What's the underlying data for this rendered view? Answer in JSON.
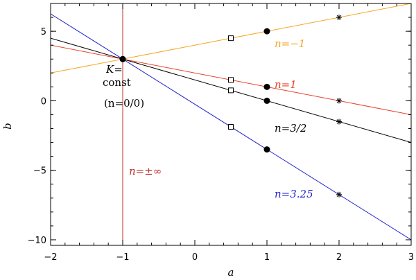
{
  "chart_data": {
    "type": "line",
    "xlabel": "a",
    "ylabel": "b",
    "xlim": [
      -2,
      3
    ],
    "ylim": [
      -10.4,
      7
    ],
    "xticks": [
      -2,
      -1,
      0,
      1,
      2,
      3
    ],
    "yticks": [
      -10,
      -5,
      0,
      5
    ],
    "grid": false,
    "series": [
      {
        "name": "n=−1",
        "color": "#f5a623",
        "slope": 1,
        "intercept": 4,
        "square": [
          0.5,
          4.5
        ],
        "dot": [
          1,
          5
        ],
        "star": [
          2,
          6
        ]
      },
      {
        "name": "n=1",
        "color": "#e8412b",
        "slope": -1,
        "intercept": 2,
        "square": [
          0.5,
          1.5
        ],
        "dot": [
          1,
          1
        ],
        "star": [
          2,
          0
        ]
      },
      {
        "name": "n=3/2",
        "color": "#000000",
        "slope": -1.5,
        "intercept": 1.5,
        "square": [
          0.5,
          0.75
        ],
        "dot": [
          1,
          0
        ],
        "star": [
          2,
          -1.5
        ]
      },
      {
        "name": "n=3.25",
        "color": "#2525d0",
        "slope": -3.25,
        "intercept": -0.25,
        "square": [
          0.5,
          -1.875
        ],
        "dot": [
          1,
          -3.5
        ],
        "star": [
          2,
          -6.75
        ]
      }
    ],
    "vertical": {
      "name": "n=±∞",
      "color": "#c0302a",
      "x": -1
    },
    "common_point": [
      -1,
      3
    ],
    "annotations": {
      "k_line1": "K=",
      "k_line2": "const",
      "n00": "(n=0/0)"
    }
  }
}
